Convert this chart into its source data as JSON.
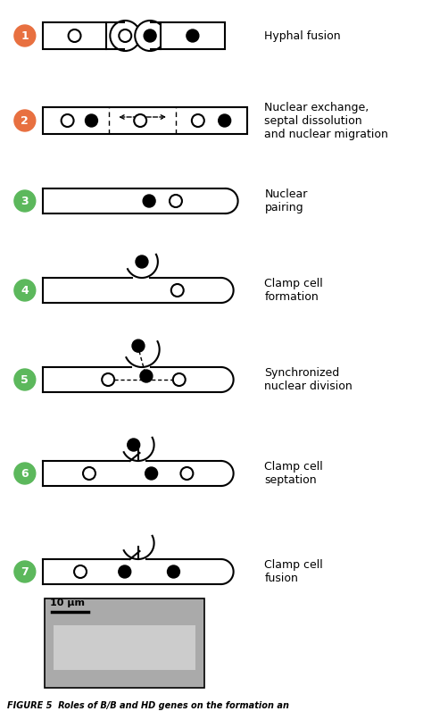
{
  "bg_color": "#ffffff",
  "step_colors": [
    "#e87040",
    "#e87040",
    "#5cb85c",
    "#5cb85c",
    "#5cb85c",
    "#5cb85c",
    "#5cb85c"
  ],
  "labels": [
    "Hyphal fusion",
    "Nuclear exchange,\nseptal dissolution\nand nuclear migration",
    "Nuclear\npairing",
    "Clamp cell\nformation",
    "Synchronized\nnuclear division",
    "Clamp cell\nseptation",
    "Clamp cell\nfusion"
  ],
  "figure_caption": "FIGURE 5  Roles of B/B and HD genes on the formation an"
}
